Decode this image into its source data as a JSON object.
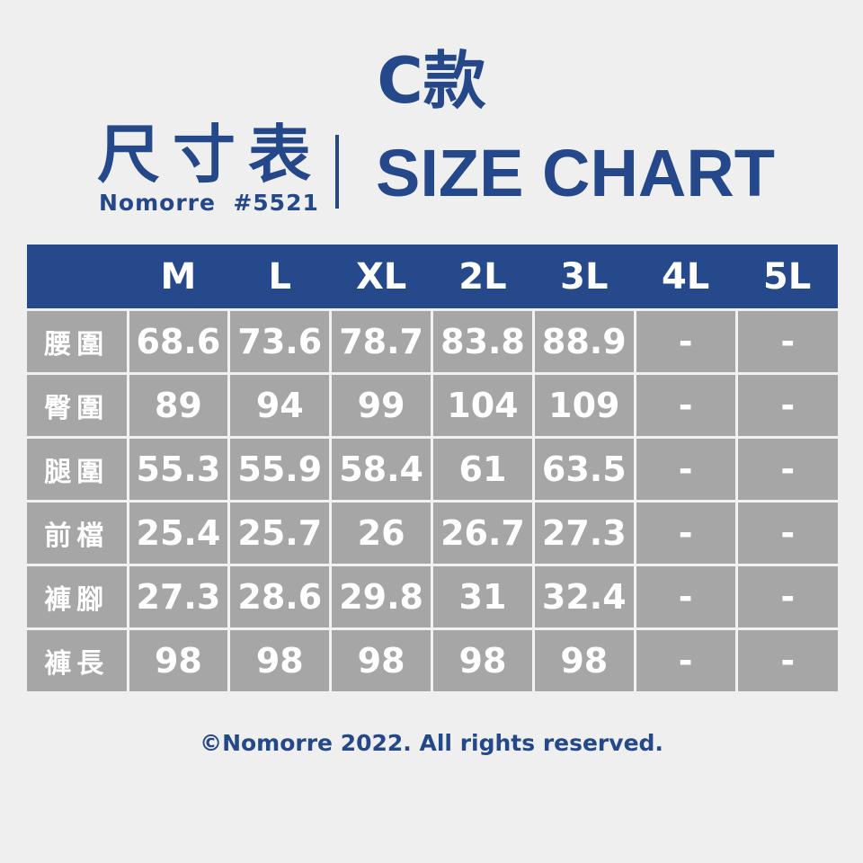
{
  "header": {
    "model": "C款",
    "title_zh": "尺寸表",
    "subtitle": "Nomorre  #5521",
    "title_en": "SIZE CHART"
  },
  "colors": {
    "brand_blue": "#24488a",
    "cell_gray": "#a6a6a6",
    "background": "#efefef"
  },
  "table": {
    "columns": [
      "",
      "M",
      "L",
      "XL",
      "2L",
      "3L",
      "4L",
      "5L"
    ],
    "rows": [
      {
        "label": "腰圍",
        "values": [
          "68.6",
          "73.6",
          "78.7",
          "83.8",
          "88.9",
          "-",
          "-"
        ]
      },
      {
        "label": "臀圍",
        "values": [
          "89",
          "94",
          "99",
          "104",
          "109",
          "-",
          "-"
        ]
      },
      {
        "label": "腿圍",
        "values": [
          "55.3",
          "55.9",
          "58.4",
          "61",
          "63.5",
          "-",
          "-"
        ]
      },
      {
        "label": "前檔",
        "values": [
          "25.4",
          "25.7",
          "26",
          "26.7",
          "27.3",
          "-",
          "-"
        ]
      },
      {
        "label": "褲腳",
        "values": [
          "27.3",
          "28.6",
          "29.8",
          "31",
          "32.4",
          "-",
          "-"
        ]
      },
      {
        "label": "褲長",
        "values": [
          "98",
          "98",
          "98",
          "98",
          "98",
          "-",
          "-"
        ]
      }
    ]
  },
  "footer": "©Nomorre 2022. All rights reserved."
}
